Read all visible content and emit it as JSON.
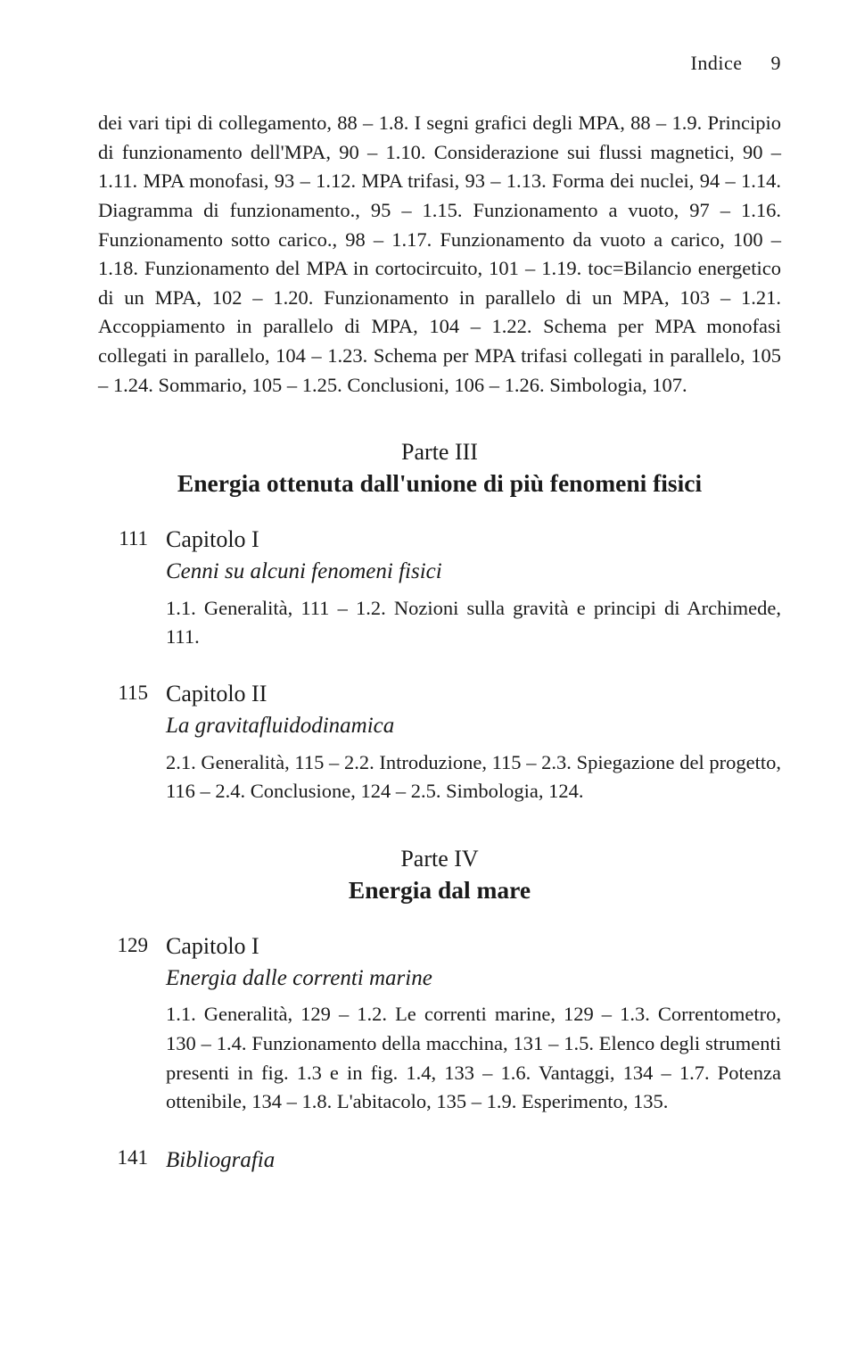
{
  "header": {
    "title": "Indice",
    "page": "9"
  },
  "top_paragraph": "dei vari tipi di collegamento, 88 – 1.8. I segni grafici degli MPA, 88 – 1.9. Principio di funzionamento dell'MPA, 90 – 1.10. Considerazione sui flussi magnetici, 90 – 1.11. MPA monofasi, 93 – 1.12. MPA trifasi, 93 – 1.13. Forma dei nuclei, 94 – 1.14. Diagramma di funzionamento., 95 – 1.15. Funzionamento a vuoto, 97 – 1.16. Funzionamento sotto carico., 98 – 1.17. Funzionamento da vuoto a carico, 100 – 1.18. Funzionamento del MPA in cortocircuito, 101 – 1.19. toc=Bilancio energetico di un MPA, 102 – 1.20. Funzionamento in parallelo di un MPA, 103 – 1.21. Accoppiamento in parallelo di MPA, 104 – 1.22. Schema per MPA monofasi collegati in parallelo, 104 – 1.23. Schema per MPA trifasi collegati in parallelo, 105 – 1.24. Sommario, 105 – 1.25. Conclusioni, 106 – 1.26. Simbologia, 107.",
  "part3": {
    "label": "Parte III",
    "title": "Energia ottenuta dall'unione di più fenomeni fisici",
    "ch1": {
      "page": "111",
      "title": "Capitolo I",
      "subtitle": "Cenni su alcuni fenomeni fisici",
      "sections": "1.1. Generalità, 111 – 1.2. Nozioni sulla gravità e principi di Archimede, 111."
    },
    "ch2": {
      "page": "115",
      "title": "Capitolo II",
      "subtitle": "La gravitafluidodinamica",
      "sections": "2.1. Generalità, 115 – 2.2. Introduzione, 115 – 2.3. Spiegazione del progetto, 116 – 2.4. Conclusione, 124 – 2.5. Simbologia, 124."
    }
  },
  "part4": {
    "label": "Parte IV",
    "title": "Energia dal mare",
    "ch1": {
      "page": "129",
      "title": "Capitolo I",
      "subtitle": "Energia dalle correnti marine",
      "sections": "1.1. Generalità, 129 – 1.2. Le correnti marine, 129 – 1.3. Correntometro, 130 – 1.4. Funzionamento della macchina, 131 – 1.5. Elenco degli strumenti presenti in fig. 1.3 e in fig. 1.4, 133 – 1.6. Vantaggi, 134 – 1.7. Potenza ottenibile, 134 – 1.8. L'abitacolo, 135 – 1.9. Esperimento, 135."
    }
  },
  "biblio": {
    "page": "141",
    "title": "Bibliografia"
  }
}
